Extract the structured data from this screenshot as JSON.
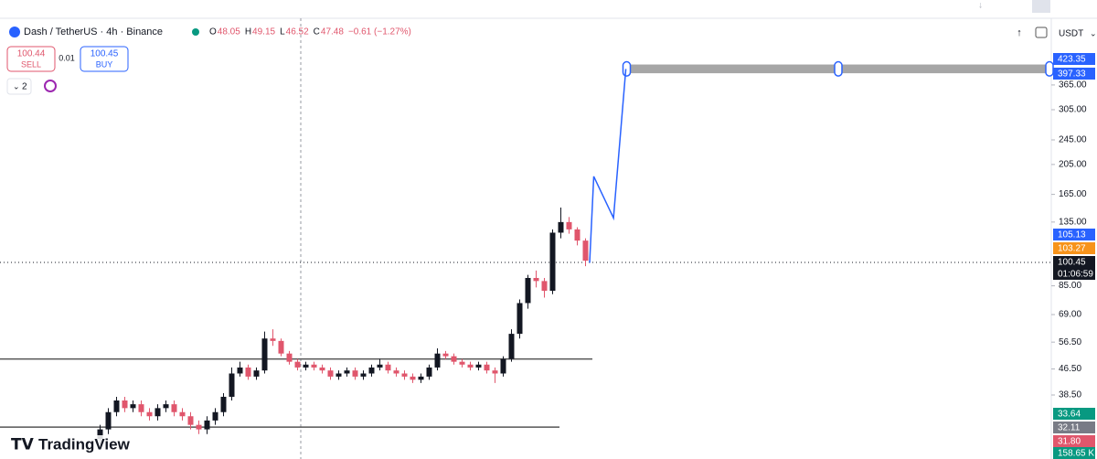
{
  "header": {
    "symbol": "Dash / TetherUS · 4h · Binance",
    "ohlc": [
      {
        "key": "O",
        "value": "48.05"
      },
      {
        "key": "H",
        "value": "49.15"
      },
      {
        "key": "L",
        "value": "46.52"
      },
      {
        "key": "C",
        "value": "47.48"
      }
    ],
    "change": "−0.61 (−1.27%)"
  },
  "trade": {
    "sell_price": "100.44",
    "sell": "SELL",
    "spread": "0.01",
    "buy_price": "100.45",
    "buy": "BUY"
  },
  "indicators_count": "2",
  "currency": "USDT",
  "brand": "TradingView",
  "price_labels": [
    "423.35",
    "397.33",
    "105.13",
    "103.27",
    "100.45",
    "01:06:59",
    "33.64",
    "32.11",
    "31.80",
    "158.65 K"
  ],
  "chart_data": {
    "type": "candlestick",
    "log_scale": true,
    "ylim": [
      24.2,
      592
    ],
    "yticks": [
      {
        "value": 365,
        "label": "365.00"
      },
      {
        "value": 305,
        "label": "305.00"
      },
      {
        "value": 245,
        "label": "245.00"
      },
      {
        "value": 205,
        "label": "205.00"
      },
      {
        "value": 165,
        "label": "165.00"
      },
      {
        "value": 135,
        "label": "135.00"
      },
      {
        "value": 85,
        "label": "85.00"
      },
      {
        "value": 69,
        "label": "69.00"
      },
      {
        "value": 56.5,
        "label": "56.50"
      },
      {
        "value": 46.5,
        "label": "46.50"
      },
      {
        "value": 38.5,
        "label": "38.50"
      }
    ],
    "up_color": "#131722",
    "down_color": "#e0566c",
    "candles": [
      [
        28,
        31,
        27,
        30
      ],
      [
        30,
        35,
        29,
        34
      ],
      [
        34,
        38,
        33,
        37
      ],
      [
        37,
        38,
        34,
        35
      ],
      [
        35,
        37,
        34,
        36
      ],
      [
        36,
        37,
        33,
        34
      ],
      [
        34,
        35,
        32,
        33
      ],
      [
        33,
        36,
        32,
        35
      ],
      [
        35,
        37,
        34,
        36
      ],
      [
        36,
        37,
        33,
        34
      ],
      [
        34,
        35,
        32,
        33
      ],
      [
        33,
        34,
        30,
        31
      ],
      [
        31,
        32,
        29,
        30
      ],
      [
        30,
        33,
        29,
        32
      ],
      [
        32,
        35,
        31,
        34
      ],
      [
        34,
        39,
        33,
        38
      ],
      [
        38,
        47,
        37,
        45
      ],
      [
        45,
        49,
        44,
        47
      ],
      [
        47,
        48,
        43,
        44
      ],
      [
        44,
        47,
        43,
        46
      ],
      [
        46,
        61,
        45,
        58
      ],
      [
        58,
        62,
        55,
        57
      ],
      [
        57,
        58,
        51,
        52
      ],
      [
        52,
        53,
        48,
        49
      ],
      [
        49,
        50,
        46,
        47
      ],
      [
        47,
        49,
        46,
        48
      ],
      [
        48,
        49,
        46,
        47
      ],
      [
        47,
        48,
        45,
        46
      ],
      [
        46,
        47,
        43,
        44
      ],
      [
        44,
        46,
        43,
        45
      ],
      [
        45,
        47,
        44,
        46
      ],
      [
        46,
        47,
        43,
        44
      ],
      [
        44,
        46,
        43,
        45
      ],
      [
        45,
        48,
        44,
        47
      ],
      [
        47,
        50,
        46,
        48
      ],
      [
        48,
        49,
        45,
        46
      ],
      [
        46,
        47,
        44,
        45
      ],
      [
        45,
        46,
        43,
        44
      ],
      [
        44,
        45,
        42,
        43
      ],
      [
        43,
        45,
        42,
        44
      ],
      [
        44,
        48,
        43,
        47
      ],
      [
        47,
        54,
        46,
        52
      ],
      [
        52,
        53,
        50,
        51
      ],
      [
        51,
        52,
        48,
        49
      ],
      [
        49,
        50,
        47,
        48
      ],
      [
        48,
        49,
        46,
        47
      ],
      [
        47,
        49,
        46,
        48
      ],
      [
        48,
        49,
        45,
        46
      ],
      [
        46,
        47,
        42,
        45
      ],
      [
        45,
        51,
        44,
        50
      ],
      [
        50,
        62,
        49,
        60
      ],
      [
        60,
        77,
        58,
        75
      ],
      [
        75,
        92,
        72,
        90
      ],
      [
        90,
        95,
        84,
        88
      ],
      [
        88,
        90,
        78,
        82
      ],
      [
        82,
        128,
        80,
        125
      ],
      [
        125,
        150,
        120,
        135
      ],
      [
        135,
        140,
        124,
        128
      ],
      [
        128,
        130,
        114,
        118
      ],
      [
        118,
        120,
        98,
        102
      ]
    ],
    "hlines": [
      50,
      30.5
    ],
    "forecast": {
      "x": [
        59.5,
        60,
        62.4,
        63.9
      ],
      "values": [
        100.45,
        188,
        139,
        410
      ]
    }
  }
}
